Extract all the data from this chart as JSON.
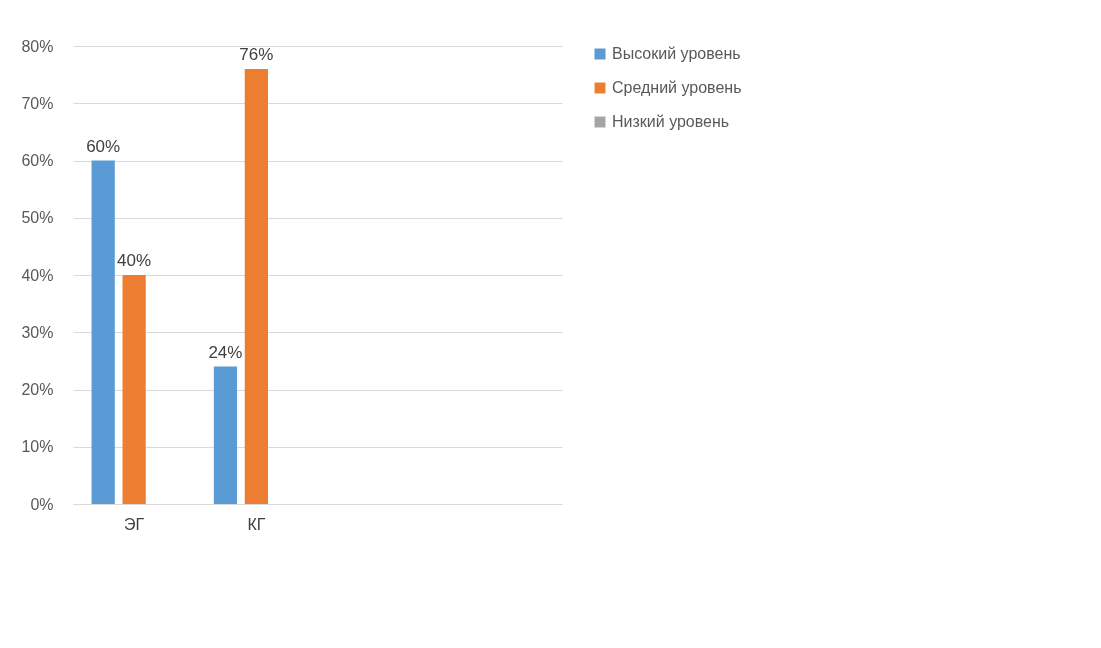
{
  "chart_data": {
    "type": "bar",
    "categories": [
      "ЭГ",
      "КГ",
      null,
      null
    ],
    "series": [
      {
        "name": "Высокий уровень",
        "color": "#5b9bd5",
        "values": [
          60,
          24,
          null,
          null
        ],
        "value_labels": [
          "60%",
          "24%",
          null,
          null
        ]
      },
      {
        "name": "Средний уровень",
        "color": "#ed7d31",
        "values": [
          40,
          76,
          null,
          null
        ],
        "value_labels": [
          "40%",
          "76%",
          null,
          null
        ]
      },
      {
        "name": "Низкий уровень",
        "color": "#a5a5a5",
        "values": [
          null,
          null,
          null,
          null
        ],
        "value_labels": [
          null,
          null,
          null,
          null
        ]
      }
    ],
    "ylim": [
      0,
      80
    ],
    "yticks": [
      {
        "value": 0,
        "label": "0%"
      },
      {
        "value": 10,
        "label": "10%"
      },
      {
        "value": 20,
        "label": "20%"
      },
      {
        "value": 30,
        "label": "30%"
      },
      {
        "value": 40,
        "label": "40%"
      },
      {
        "value": 50,
        "label": "50%"
      },
      {
        "value": 60,
        "label": "60%"
      },
      {
        "value": 70,
        "label": "70%"
      },
      {
        "value": 80,
        "label": "80%"
      }
    ],
    "grid": "y",
    "legend": "right"
  }
}
